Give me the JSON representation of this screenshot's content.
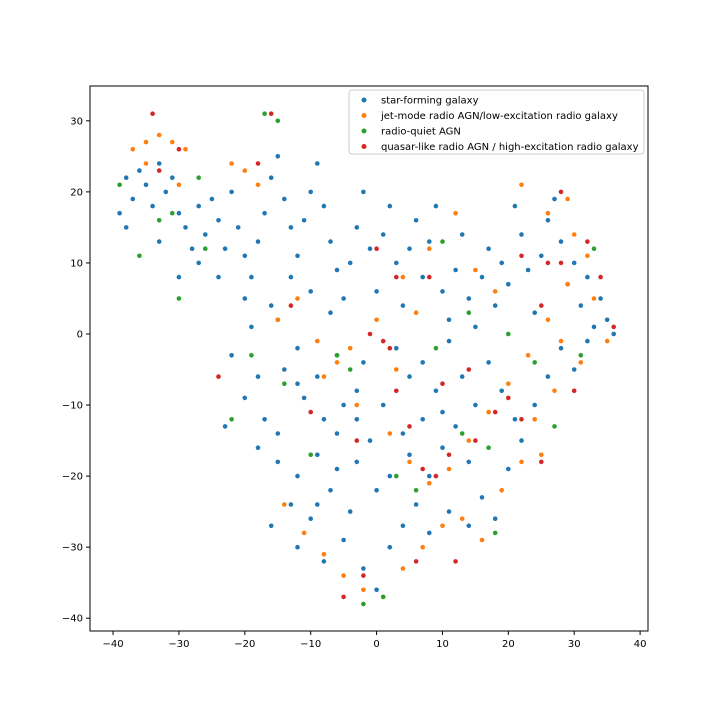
{
  "chart_data": {
    "type": "scatter",
    "title": "",
    "xlabel": "",
    "ylabel": "",
    "xlim": [
      -43.5,
      41.2
    ],
    "ylim": [
      -41.8,
      34.9
    ],
    "grid": false,
    "legend_position": "top-right",
    "xticks": [
      -40,
      -30,
      -20,
      -10,
      0,
      10,
      20,
      30,
      40
    ],
    "yticks": [
      30,
      20,
      10,
      0,
      -10,
      -20,
      -30,
      -40
    ],
    "series": [
      {
        "name": "star-forming galaxy",
        "color": "#1f77b4",
        "points": [
          [
            -39,
            17
          ],
          [
            -38,
            22
          ],
          [
            -37,
            19
          ],
          [
            -36,
            23
          ],
          [
            -35,
            21
          ],
          [
            -34,
            18
          ],
          [
            -33,
            24
          ],
          [
            -32,
            20
          ],
          [
            -31,
            22
          ],
          [
            -30,
            17
          ],
          [
            -29,
            15
          ],
          [
            -28,
            12
          ],
          [
            -27,
            10
          ],
          [
            -26,
            14
          ],
          [
            -25,
            19
          ],
          [
            -24,
            16
          ],
          [
            -23,
            12
          ],
          [
            -22,
            20
          ],
          [
            -21,
            15
          ],
          [
            -20,
            11
          ],
          [
            -19,
            8
          ],
          [
            -18,
            13
          ],
          [
            -17,
            17
          ],
          [
            -16,
            22
          ],
          [
            -15,
            25
          ],
          [
            -14,
            19
          ],
          [
            -13,
            15
          ],
          [
            -12,
            11
          ],
          [
            -11,
            16
          ],
          [
            -10,
            20
          ],
          [
            -9,
            24
          ],
          [
            -8,
            18
          ],
          [
            -7,
            13
          ],
          [
            -6,
            9
          ],
          [
            -5,
            5
          ],
          [
            -4,
            10
          ],
          [
            -3,
            15
          ],
          [
            -2,
            20
          ],
          [
            -1,
            12
          ],
          [
            0,
            6
          ],
          [
            1,
            14
          ],
          [
            2,
            18
          ],
          [
            3,
            10
          ],
          [
            4,
            4
          ],
          [
            5,
            12
          ],
          [
            6,
            16
          ],
          [
            7,
            8
          ],
          [
            8,
            13
          ],
          [
            9,
            18
          ],
          [
            10,
            6
          ],
          [
            11,
            2
          ],
          [
            12,
            9
          ],
          [
            13,
            14
          ],
          [
            14,
            5
          ],
          [
            15,
            1
          ],
          [
            16,
            8
          ],
          [
            17,
            12
          ],
          [
            18,
            4
          ],
          [
            19,
            10
          ],
          [
            20,
            7
          ],
          [
            21,
            18
          ],
          [
            22,
            14
          ],
          [
            23,
            9
          ],
          [
            24,
            3
          ],
          [
            25,
            11
          ],
          [
            26,
            16
          ],
          [
            27,
            19
          ],
          [
            28,
            13
          ],
          [
            29,
            7
          ],
          [
            30,
            10
          ],
          [
            31,
            4
          ],
          [
            32,
            8
          ],
          [
            33,
            1
          ],
          [
            34,
            5
          ],
          [
            35,
            2
          ],
          [
            36,
            0
          ],
          [
            -38,
            15
          ],
          [
            -33,
            13
          ],
          [
            -30,
            8
          ],
          [
            -27,
            18
          ],
          [
            -24,
            8
          ],
          [
            -20,
            5
          ],
          [
            -15,
            2
          ],
          [
            -12,
            -2
          ],
          [
            -9,
            -6
          ],
          [
            -6,
            -3
          ],
          [
            -3,
            -8
          ],
          [
            -8,
            -12
          ],
          [
            -11,
            -9
          ],
          [
            -14,
            -5
          ],
          [
            -17,
            -12
          ],
          [
            -18,
            -16
          ],
          [
            -15,
            -18
          ],
          [
            -12,
            -20
          ],
          [
            -9,
            -17
          ],
          [
            -6,
            -14
          ],
          [
            -3,
            -18
          ],
          [
            -7,
            -22
          ],
          [
            -4,
            -25
          ],
          [
            -10,
            -26
          ],
          [
            -13,
            -24
          ],
          [
            -16,
            -27
          ],
          [
            -12,
            -30
          ],
          [
            -8,
            -32
          ],
          [
            -5,
            -29
          ],
          [
            -2,
            -33
          ],
          [
            0,
            -36
          ],
          [
            2,
            -30
          ],
          [
            4,
            -27
          ],
          [
            6,
            -24
          ],
          [
            8,
            -20
          ],
          [
            10,
            -16
          ],
          [
            12,
            -13
          ],
          [
            14,
            -18
          ],
          [
            16,
            -23
          ],
          [
            18,
            -26
          ],
          [
            20,
            -19
          ],
          [
            22,
            -15
          ],
          [
            24,
            -10
          ],
          [
            26,
            -6
          ],
          [
            28,
            -2
          ],
          [
            30,
            -5
          ],
          [
            32,
            -1
          ],
          [
            21,
            -12
          ],
          [
            19,
            -8
          ],
          [
            17,
            -4
          ],
          [
            15,
            -10
          ],
          [
            13,
            -6
          ],
          [
            11,
            -1
          ],
          [
            9,
            -8
          ],
          [
            7,
            -12
          ],
          [
            5,
            -6
          ],
          [
            3,
            -2
          ],
          [
            1,
            -10
          ],
          [
            -1,
            -15
          ],
          [
            2,
            -20
          ],
          [
            5,
            -17
          ],
          [
            8,
            -28
          ],
          [
            11,
            -25
          ],
          [
            14,
            -27
          ],
          [
            -5,
            -10
          ],
          [
            -2,
            -4
          ],
          [
            -7,
            3
          ],
          [
            -10,
            6
          ],
          [
            -13,
            8
          ],
          [
            -16,
            4
          ],
          [
            -19,
            1
          ],
          [
            -22,
            -3
          ],
          [
            -20,
            -9
          ],
          [
            -23,
            -13
          ],
          [
            -18,
            -6
          ],
          [
            -15,
            -14
          ],
          [
            -12,
            -7
          ],
          [
            -6,
            -19
          ],
          [
            -9,
            -24
          ],
          [
            -3,
            -12
          ],
          [
            0,
            -22
          ],
          [
            4,
            -14
          ],
          [
            7,
            -4
          ],
          [
            10,
            -11
          ]
        ]
      },
      {
        "name": "jet-mode radio AGN/low-excitation radio galaxy",
        "color": "#ff7f0e",
        "points": [
          [
            -37,
            26
          ],
          [
            -35,
            27
          ],
          [
            -33,
            28
          ],
          [
            -31,
            27
          ],
          [
            -29,
            26
          ],
          [
            -22,
            24
          ],
          [
            -20,
            23
          ],
          [
            -18,
            21
          ],
          [
            -35,
            24
          ],
          [
            -30,
            21
          ],
          [
            -15,
            2
          ],
          [
            -12,
            5
          ],
          [
            -9,
            -1
          ],
          [
            -6,
            -4
          ],
          [
            -3,
            -10
          ],
          [
            2,
            -14
          ],
          [
            5,
            -18
          ],
          [
            8,
            -21
          ],
          [
            11,
            -19
          ],
          [
            14,
            -15
          ],
          [
            17,
            -11
          ],
          [
            20,
            -7
          ],
          [
            23,
            -3
          ],
          [
            26,
            2
          ],
          [
            29,
            7
          ],
          [
            32,
            11
          ],
          [
            35,
            -1
          ],
          [
            31,
            -4
          ],
          [
            27,
            -8
          ],
          [
            24,
            -12
          ],
          [
            -14,
            -24
          ],
          [
            -11,
            -28
          ],
          [
            -8,
            -31
          ],
          [
            -5,
            -34
          ],
          [
            -2,
            -36
          ],
          [
            1,
            -37
          ],
          [
            4,
            -33
          ],
          [
            7,
            -30
          ],
          [
            10,
            -27
          ],
          [
            13,
            -26
          ],
          [
            16,
            -29
          ],
          [
            19,
            -22
          ],
          [
            22,
            -18
          ],
          [
            25,
            -17
          ],
          [
            12,
            17
          ],
          [
            8,
            12
          ],
          [
            4,
            8
          ],
          [
            0,
            2
          ],
          [
            -4,
            -2
          ],
          [
            -8,
            -6
          ],
          [
            22,
            21
          ],
          [
            26,
            17
          ],
          [
            29,
            19
          ],
          [
            30,
            14
          ],
          [
            33,
            5
          ],
          [
            28,
            -1
          ],
          [
            18,
            6
          ],
          [
            15,
            9
          ],
          [
            6,
            3
          ],
          [
            3,
            -5
          ]
        ]
      },
      {
        "name": "radio-quiet AGN",
        "color": "#2ca02c",
        "points": [
          [
            -39,
            21
          ],
          [
            -36,
            11
          ],
          [
            -33,
            16
          ],
          [
            -30,
            5
          ],
          [
            -27,
            22
          ],
          [
            -17,
            31
          ],
          [
            -15,
            30
          ],
          [
            -22,
            -12
          ],
          [
            -19,
            -3
          ],
          [
            -14,
            -7
          ],
          [
            -6,
            -3
          ],
          [
            -4,
            -5
          ],
          [
            3,
            -20
          ],
          [
            6,
            -22
          ],
          [
            9,
            -2
          ],
          [
            13,
            -14
          ],
          [
            17,
            -16
          ],
          [
            20,
            0
          ],
          [
            24,
            -4
          ],
          [
            27,
            -13
          ],
          [
            31,
            -3
          ],
          [
            -2,
            -38
          ],
          [
            1,
            -37
          ],
          [
            14,
            3
          ],
          [
            10,
            13
          ],
          [
            -10,
            -17
          ],
          [
            -26,
            12
          ],
          [
            18,
            -28
          ],
          [
            33,
            12
          ],
          [
            -31,
            17
          ]
        ]
      },
      {
        "name": "quasar-like radio AGN / high-excitation radio galaxy",
        "color": "#d62728",
        "points": [
          [
            -34,
            31
          ],
          [
            -33,
            23
          ],
          [
            -30,
            26
          ],
          [
            -24,
            -6
          ],
          [
            -18,
            24
          ],
          [
            -16,
            31
          ],
          [
            -13,
            4
          ],
          [
            -10,
            -11
          ],
          [
            -5,
            -37
          ],
          [
            -3,
            -15
          ],
          [
            -1,
            0
          ],
          [
            1,
            -1
          ],
          [
            2,
            -2
          ],
          [
            3,
            -8
          ],
          [
            5,
            -13
          ],
          [
            7,
            -19
          ],
          [
            9,
            -20
          ],
          [
            11,
            -17
          ],
          [
            12,
            -32
          ],
          [
            15,
            -15
          ],
          [
            18,
            -11
          ],
          [
            20,
            -9
          ],
          [
            22,
            -12
          ],
          [
            25,
            -18
          ],
          [
            26,
            10
          ],
          [
            28,
            20
          ],
          [
            30,
            -8
          ],
          [
            34,
            8
          ],
          [
            36,
            1
          ],
          [
            6,
            -32
          ],
          [
            0,
            12
          ],
          [
            3,
            8
          ],
          [
            8,
            8
          ],
          [
            10,
            -7
          ],
          [
            14,
            -5
          ],
          [
            22,
            11
          ],
          [
            25,
            4
          ],
          [
            28,
            10
          ],
          [
            32,
            13
          ],
          [
            -2,
            -34
          ]
        ]
      }
    ]
  }
}
